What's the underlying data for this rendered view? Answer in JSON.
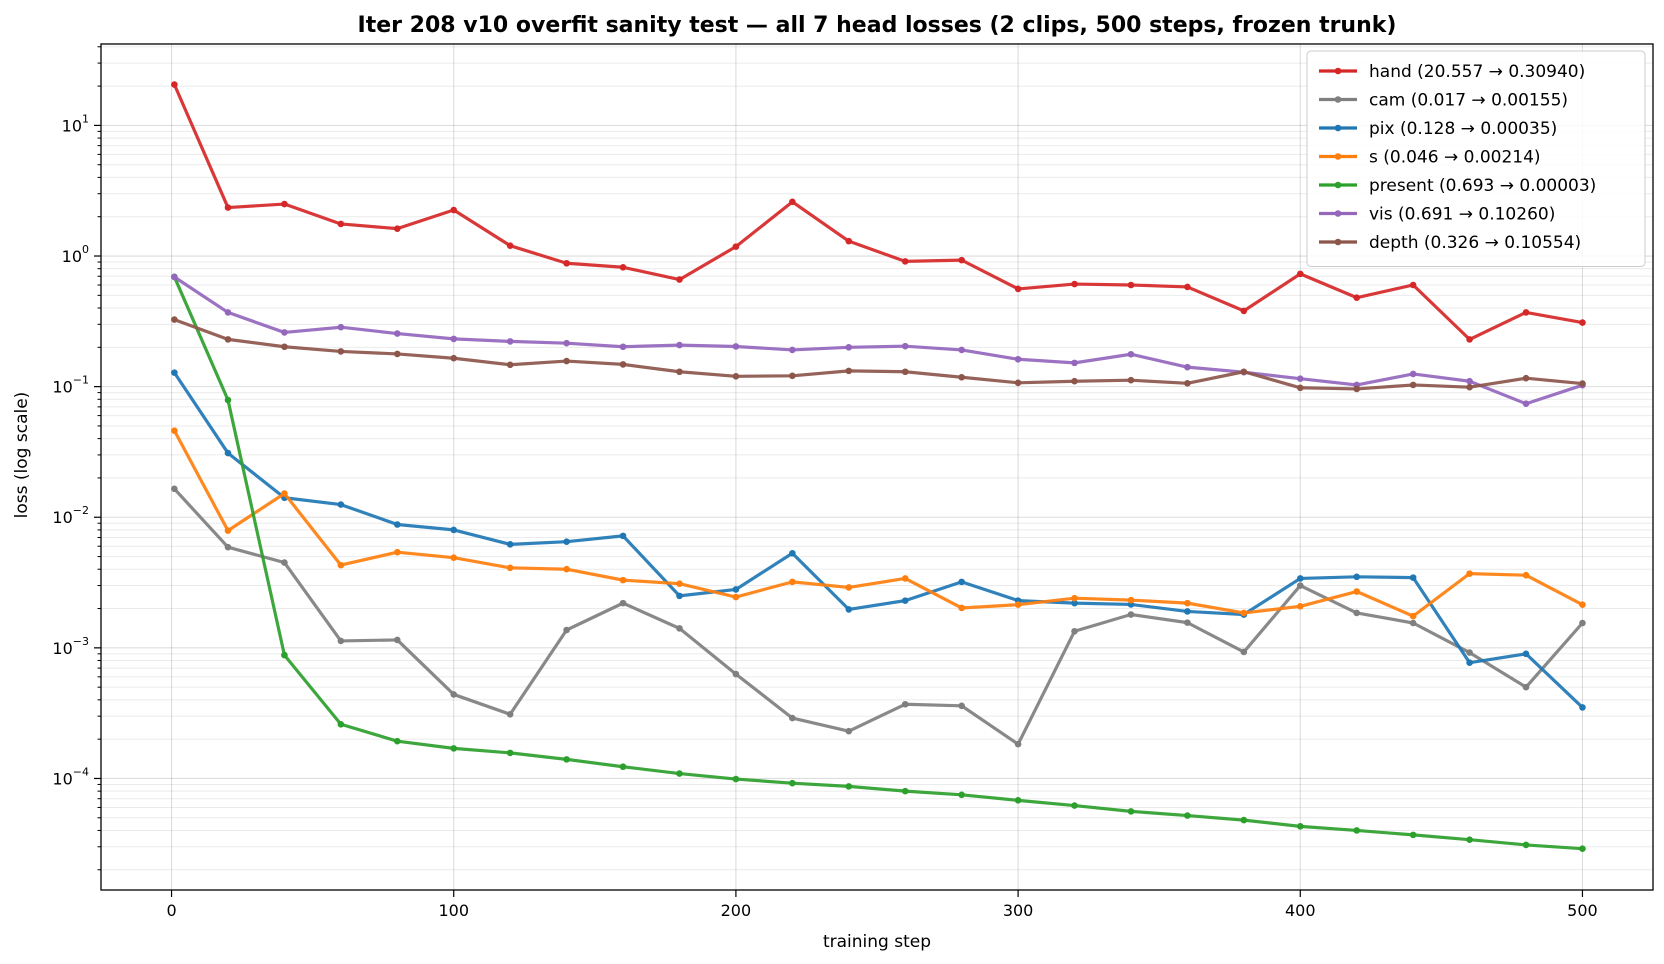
{
  "chart_data": {
    "type": "line",
    "title": "Iter 208 v10 overfit sanity test — all 7 head losses (2 clips, 500 steps, frozen trunk)",
    "xlabel": "training step",
    "ylabel": "loss (log scale)",
    "yscale": "log",
    "xlim": [
      -25,
      525
    ],
    "ylim": [
      1.4e-05,
      42
    ],
    "xticks": [
      0,
      100,
      200,
      300,
      400,
      500
    ],
    "xtick_labels": [
      "0",
      "100",
      "200",
      "300",
      "400",
      "500"
    ],
    "yticks": [
      0.0001,
      0.001,
      0.01,
      0.1,
      1,
      10
    ],
    "ytick_labels": [
      {
        "base": "10",
        "exp": "−4"
      },
      {
        "base": "10",
        "exp": "−3"
      },
      {
        "base": "10",
        "exp": "−2"
      },
      {
        "base": "10",
        "exp": "−1"
      },
      {
        "base": "10",
        "exp": "0"
      },
      {
        "base": "10",
        "exp": "1"
      }
    ],
    "grid": true,
    "legend_position": "top-right",
    "x": [
      1,
      20,
      40,
      60,
      80,
      100,
      120,
      140,
      160,
      180,
      200,
      220,
      240,
      260,
      280,
      300,
      320,
      340,
      360,
      380,
      400,
      420,
      440,
      460,
      480,
      500
    ],
    "series": [
      {
        "name": "hand (20.557 → 0.30940)",
        "color": "#d62728",
        "values": [
          20.557,
          2.35,
          2.5,
          1.76,
          1.62,
          2.25,
          1.2,
          0.88,
          0.82,
          0.66,
          1.18,
          2.6,
          1.3,
          0.91,
          0.93,
          0.56,
          0.61,
          0.6,
          0.58,
          0.38,
          0.73,
          0.48,
          0.6,
          0.23,
          0.37,
          0.3094
        ]
      },
      {
        "name": "cam (0.017 → 0.00155)",
        "color": "#7f7f7f",
        "values": [
          0.0165,
          0.0059,
          0.0045,
          0.00113,
          0.00115,
          0.00044,
          0.00031,
          0.00137,
          0.0022,
          0.00141,
          0.00063,
          0.00029,
          0.00023,
          0.00037,
          0.00036,
          0.000183,
          0.00134,
          0.0018,
          0.00156,
          0.00093,
          0.003,
          0.00185,
          0.00155,
          0.00092,
          0.0005,
          0.00155
        ]
      },
      {
        "name": "pix (0.128 → 0.00035)",
        "color": "#1f77b4",
        "values": [
          0.128,
          0.031,
          0.0141,
          0.0125,
          0.0088,
          0.008,
          0.0062,
          0.0065,
          0.0072,
          0.0025,
          0.0028,
          0.0053,
          0.00197,
          0.0023,
          0.0032,
          0.0023,
          0.0022,
          0.00215,
          0.0019,
          0.0018,
          0.0034,
          0.0035,
          0.00345,
          0.00077,
          0.0009,
          0.00035
        ]
      },
      {
        "name": "s (0.046 → 0.00214)",
        "color": "#ff7f0e",
        "values": [
          0.046,
          0.0079,
          0.0152,
          0.0043,
          0.0054,
          0.0049,
          0.0041,
          0.004,
          0.0033,
          0.0031,
          0.00245,
          0.0032,
          0.0029,
          0.0034,
          0.00202,
          0.00214,
          0.0024,
          0.00232,
          0.0022,
          0.00185,
          0.00208,
          0.0027,
          0.00175,
          0.0037,
          0.0036,
          0.00214
        ]
      },
      {
        "name": "present (0.693 → 0.00003)",
        "color": "#2ca02c",
        "values": [
          0.693,
          0.079,
          0.00088,
          0.00026,
          0.000193,
          0.00017,
          0.000157,
          0.00014,
          0.000123,
          0.000109,
          9.9e-05,
          9.2e-05,
          8.7e-05,
          8e-05,
          7.5e-05,
          6.8e-05,
          6.2e-05,
          5.6e-05,
          5.2e-05,
          4.8e-05,
          4.3e-05,
          4e-05,
          3.7e-05,
          3.4e-05,
          3.1e-05,
          2.9e-05
        ]
      },
      {
        "name": "vis (0.691 → 0.10260)",
        "color": "#9467bd",
        "values": [
          0.691,
          0.37,
          0.26,
          0.285,
          0.255,
          0.232,
          0.222,
          0.215,
          0.202,
          0.208,
          0.203,
          0.191,
          0.2,
          0.204,
          0.191,
          0.162,
          0.152,
          0.177,
          0.141,
          0.129,
          0.115,
          0.103,
          0.125,
          0.11,
          0.074,
          0.1026
        ]
      },
      {
        "name": "depth (0.326 → 0.10554)",
        "color": "#8c564b",
        "values": [
          0.326,
          0.23,
          0.202,
          0.186,
          0.178,
          0.165,
          0.147,
          0.157,
          0.148,
          0.13,
          0.12,
          0.121,
          0.132,
          0.13,
          0.118,
          0.107,
          0.11,
          0.112,
          0.106,
          0.13,
          0.098,
          0.096,
          0.103,
          0.099,
          0.116,
          0.10554
        ]
      }
    ]
  }
}
